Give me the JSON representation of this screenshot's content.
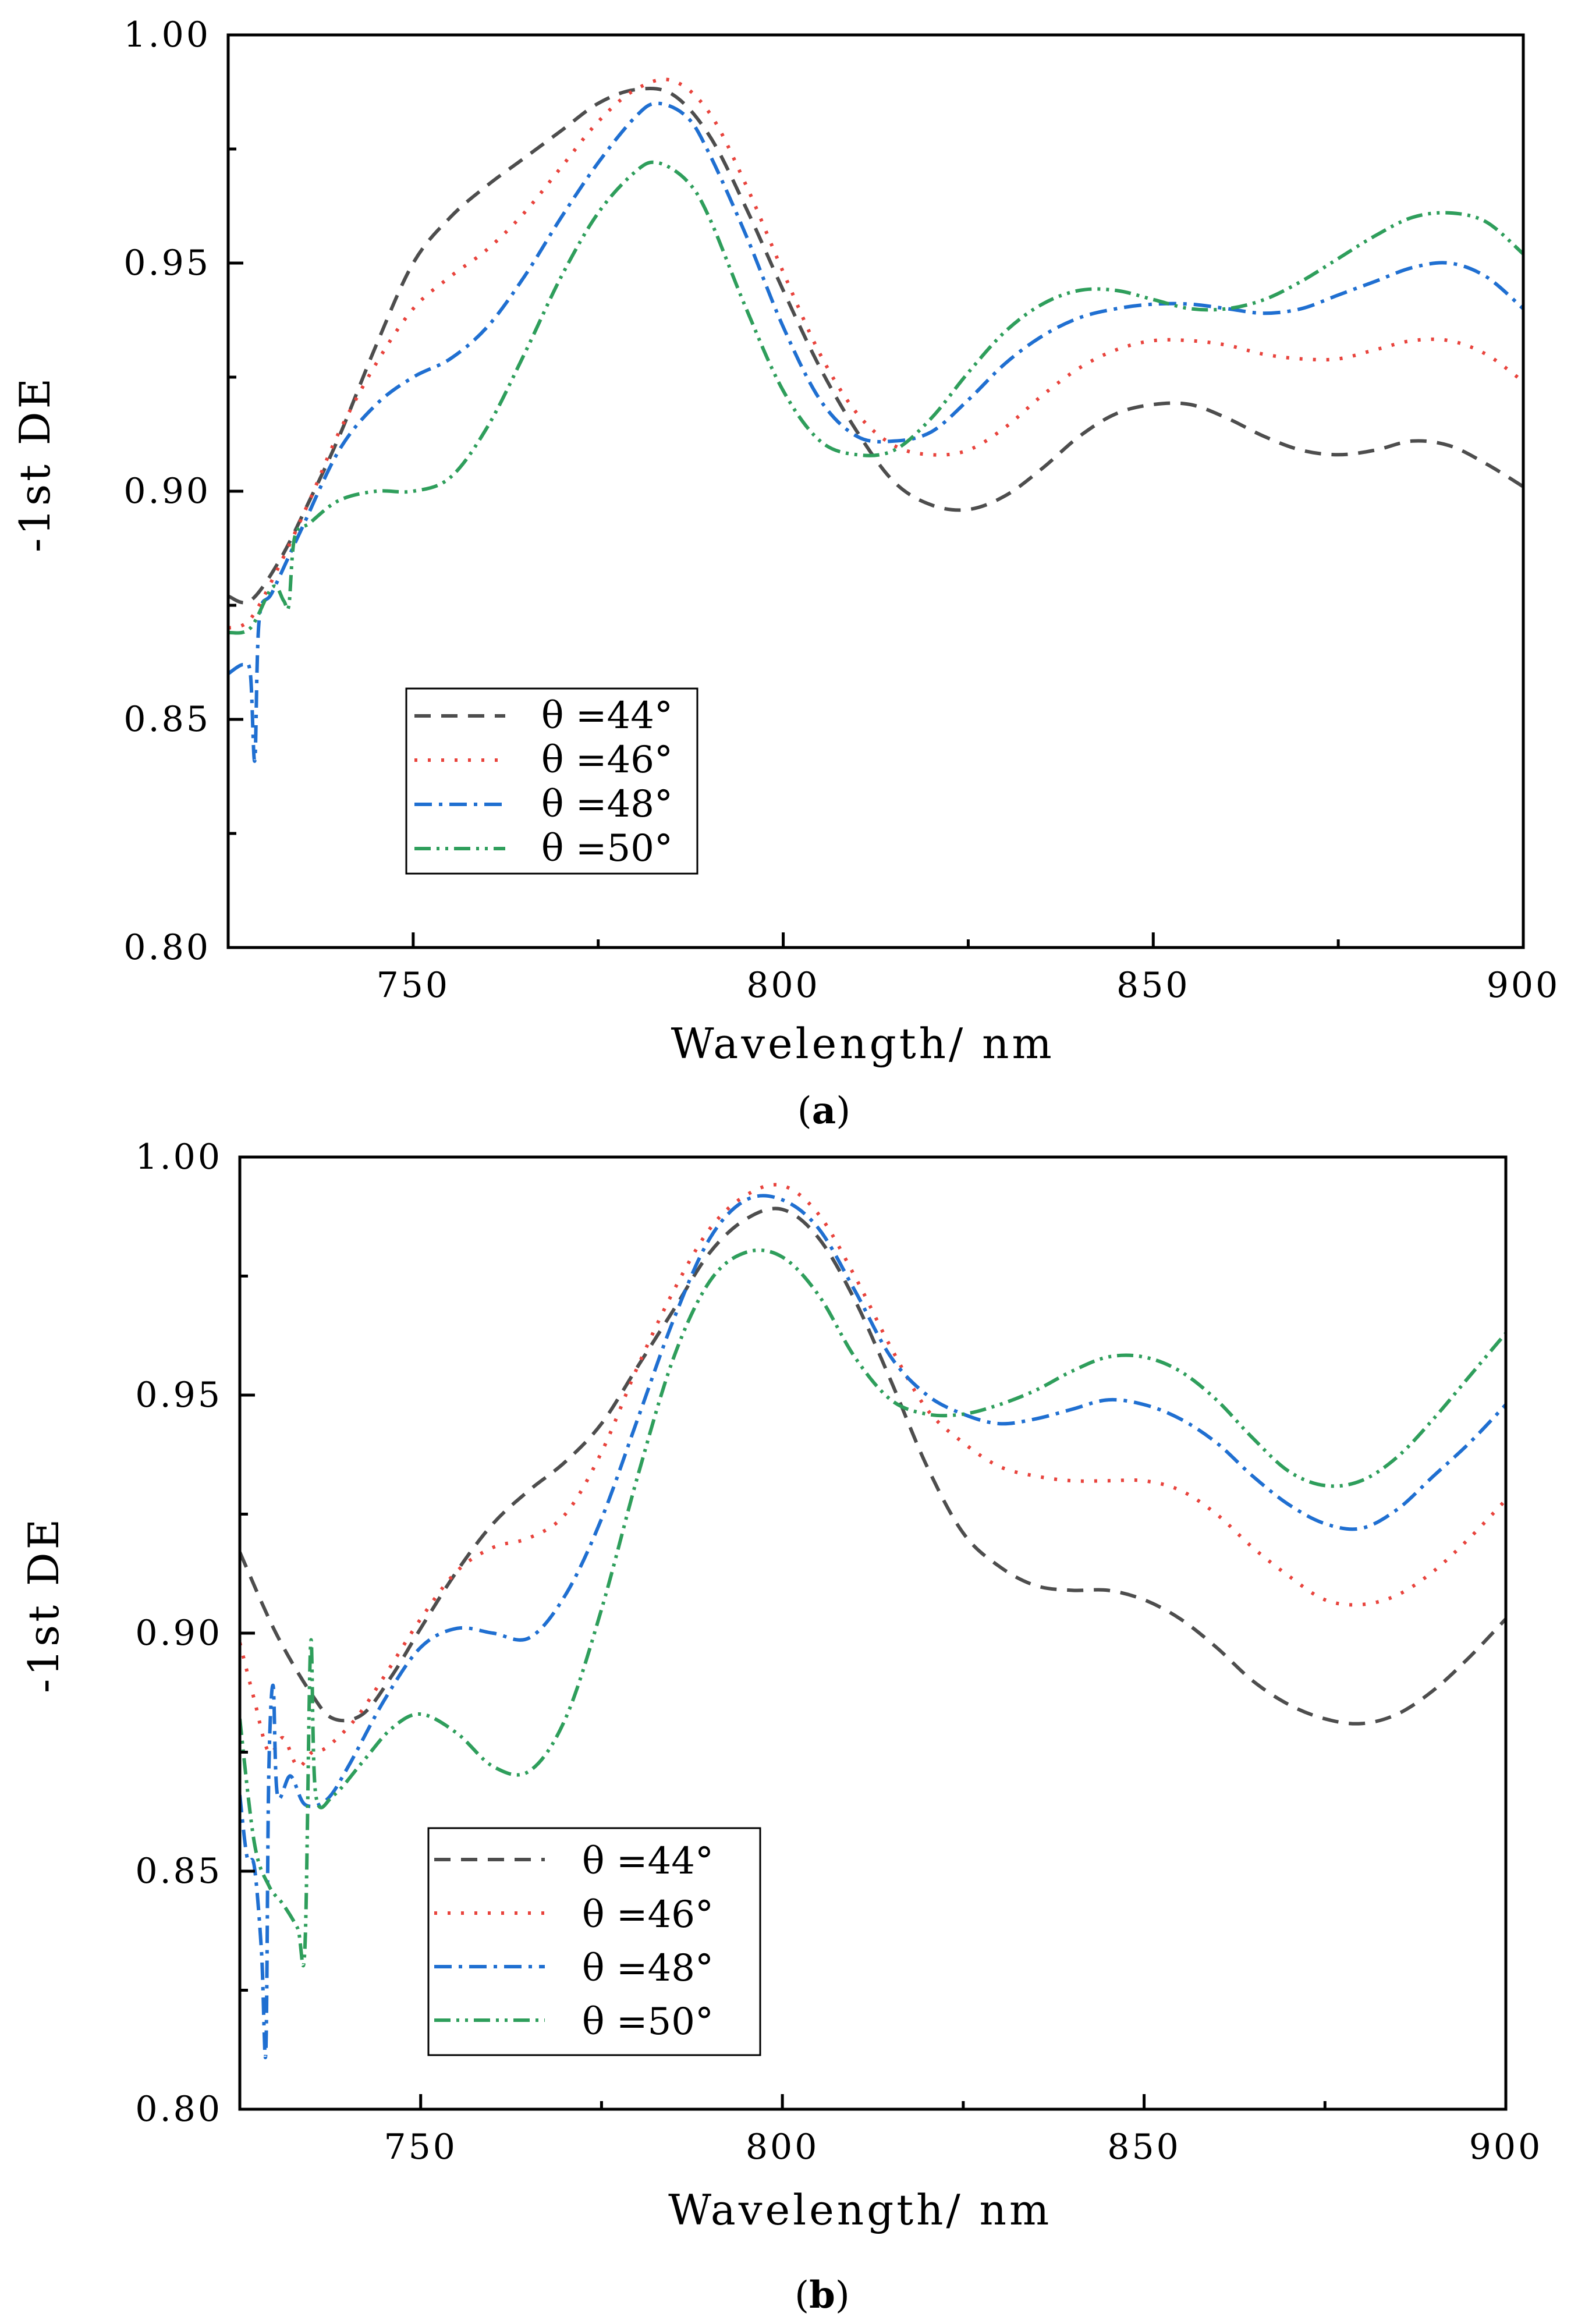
{
  "chart_data": [
    {
      "type": "line",
      "panel": "(a)",
      "panel_letter": "a",
      "xlabel": "Wavelength/ nm",
      "ylabel": "-1st DE",
      "xlim": [
        725,
        900
      ],
      "ylim": [
        0.8,
        1.0
      ],
      "xticks": [
        750,
        800,
        850,
        900
      ],
      "xtick_labels": [
        "750",
        "800",
        "850",
        "900"
      ],
      "yticks": [
        0.8,
        0.85,
        0.9,
        0.95,
        1.0
      ],
      "ytick_labels": [
        "0.80",
        "0.85",
        "0.90",
        "0.95",
        "1.00"
      ],
      "legend": "lower-left",
      "series": [
        {
          "name": "θ =44°",
          "color": "#4d4d4d",
          "dash": "28,18",
          "x": [
            725,
            728,
            732,
            736,
            740,
            745,
            750,
            755,
            760,
            765,
            770,
            775,
            780,
            785,
            790,
            795,
            800,
            805,
            810,
            815,
            820,
            825,
            830,
            835,
            840,
            845,
            850,
            855,
            860,
            865,
            870,
            875,
            880,
            885,
            890,
            895,
            900
          ],
          "y": [
            0.877,
            0.876,
            0.885,
            0.898,
            0.912,
            0.932,
            0.95,
            0.96,
            0.967,
            0.973,
            0.979,
            0.985,
            0.988,
            0.987,
            0.978,
            0.962,
            0.944,
            0.927,
            0.913,
            0.902,
            0.897,
            0.896,
            0.899,
            0.905,
            0.912,
            0.917,
            0.919,
            0.919,
            0.916,
            0.912,
            0.909,
            0.908,
            0.909,
            0.911,
            0.91,
            0.906,
            0.901
          ]
        },
        {
          "name": "θ =46°",
          "color": "#e8433c",
          "dash": "5,18",
          "x": [
            725,
            728,
            732,
            736,
            740,
            745,
            750,
            755,
            760,
            765,
            770,
            775,
            780,
            785,
            790,
            795,
            800,
            805,
            810,
            815,
            820,
            825,
            830,
            835,
            840,
            845,
            850,
            855,
            860,
            865,
            870,
            875,
            880,
            885,
            890,
            895,
            900
          ],
          "y": [
            0.87,
            0.872,
            0.884,
            0.898,
            0.913,
            0.928,
            0.94,
            0.947,
            0.953,
            0.961,
            0.971,
            0.981,
            0.988,
            0.99,
            0.983,
            0.967,
            0.948,
            0.93,
            0.917,
            0.91,
            0.908,
            0.909,
            0.914,
            0.921,
            0.927,
            0.931,
            0.933,
            0.933,
            0.932,
            0.93,
            0.929,
            0.929,
            0.931,
            0.933,
            0.933,
            0.93,
            0.924
          ]
        },
        {
          "name": "θ =48°",
          "color": "#1f6fd1",
          "dash": "30,12,6,12",
          "x": [
            725,
            727,
            728,
            728.6,
            729.2,
            731,
            735,
            740,
            745,
            750,
            755,
            760,
            765,
            770,
            775,
            780,
            783,
            787,
            790,
            795,
            800,
            805,
            810,
            815,
            820,
            825,
            830,
            835,
            840,
            845,
            850,
            855,
            860,
            865,
            870,
            875,
            880,
            885,
            890,
            895,
            900
          ],
          "y": [
            0.86,
            0.862,
            0.86,
            0.841,
            0.872,
            0.878,
            0.892,
            0.909,
            0.919,
            0.925,
            0.929,
            0.936,
            0.947,
            0.96,
            0.972,
            0.982,
            0.985,
            0.982,
            0.974,
            0.956,
            0.936,
            0.92,
            0.912,
            0.911,
            0.913,
            0.92,
            0.928,
            0.934,
            0.938,
            0.94,
            0.941,
            0.941,
            0.94,
            0.939,
            0.94,
            0.943,
            0.946,
            0.949,
            0.95,
            0.947,
            0.94
          ]
        },
        {
          "name": "θ =50°",
          "color": "#2e9e5b",
          "dash": "28,10,5,10,5,10",
          "x": [
            725,
            728,
            731,
            732.5,
            733.2,
            734,
            736,
            740,
            745,
            750,
            755,
            760,
            765,
            770,
            775,
            780,
            783,
            787,
            790,
            795,
            800,
            805,
            810,
            815,
            820,
            825,
            830,
            835,
            840,
            845,
            850,
            855,
            860,
            865,
            870,
            875,
            880,
            885,
            890,
            895,
            900
          ],
          "y": [
            0.869,
            0.87,
            0.879,
            0.876,
            0.875,
            0.89,
            0.893,
            0.898,
            0.9,
            0.9,
            0.903,
            0.914,
            0.93,
            0.947,
            0.961,
            0.97,
            0.972,
            0.968,
            0.96,
            0.94,
            0.922,
            0.911,
            0.908,
            0.909,
            0.916,
            0.926,
            0.935,
            0.941,
            0.944,
            0.944,
            0.942,
            0.94,
            0.94,
            0.942,
            0.946,
            0.951,
            0.956,
            0.96,
            0.961,
            0.959,
            0.952
          ]
        }
      ]
    },
    {
      "type": "line",
      "panel": "(b)",
      "panel_letter": "b",
      "xlabel": "Wavelength/ nm",
      "ylabel": "-1st DE",
      "xlim": [
        725,
        900
      ],
      "ylim": [
        0.8,
        1.0
      ],
      "xticks": [
        750,
        800,
        850,
        900
      ],
      "xtick_labels": [
        "750",
        "800",
        "850",
        "900"
      ],
      "yticks": [
        0.8,
        0.85,
        0.9,
        0.95,
        1.0
      ],
      "ytick_labels": [
        "0.80",
        "0.85",
        "0.90",
        "0.95",
        "1.00"
      ],
      "legend": "lower-left",
      "series": [
        {
          "name": "θ =44°",
          "color": "#4d4d4d",
          "dash": "28,18",
          "x": [
            725,
            730,
            735,
            738,
            742,
            746,
            750,
            755,
            760,
            765,
            770,
            775,
            780,
            785,
            790,
            795,
            800,
            805,
            810,
            815,
            820,
            825,
            830,
            835,
            840,
            845,
            850,
            855,
            860,
            865,
            870,
            875,
            880,
            885,
            890,
            895,
            900
          ],
          "y": [
            0.917,
            0.9,
            0.887,
            0.882,
            0.883,
            0.891,
            0.901,
            0.913,
            0.923,
            0.93,
            0.936,
            0.944,
            0.956,
            0.968,
            0.98,
            0.987,
            0.989,
            0.983,
            0.97,
            0.953,
            0.935,
            0.921,
            0.914,
            0.91,
            0.909,
            0.909,
            0.907,
            0.903,
            0.897,
            0.89,
            0.885,
            0.882,
            0.881,
            0.883,
            0.888,
            0.895,
            0.903
          ]
        },
        {
          "name": "θ =46°",
          "color": "#e8433c",
          "dash": "5,18",
          "x": [
            725,
            727,
            729,
            731,
            733,
            735,
            737,
            741,
            745,
            750,
            755,
            760,
            765,
            770,
            775,
            780,
            785,
            790,
            795,
            800,
            805,
            810,
            815,
            820,
            825,
            830,
            835,
            840,
            845,
            850,
            855,
            860,
            865,
            870,
            875,
            880,
            885,
            890,
            895,
            900
          ],
          "y": [
            0.898,
            0.886,
            0.875,
            0.878,
            0.872,
            0.875,
            0.876,
            0.882,
            0.891,
            0.903,
            0.913,
            0.918,
            0.92,
            0.925,
            0.938,
            0.956,
            0.972,
            0.985,
            0.992,
            0.994,
            0.988,
            0.975,
            0.96,
            0.947,
            0.94,
            0.935,
            0.933,
            0.932,
            0.932,
            0.932,
            0.93,
            0.925,
            0.918,
            0.912,
            0.907,
            0.906,
            0.908,
            0.913,
            0.92,
            0.928
          ]
        },
        {
          "name": "θ =48°",
          "color": "#1f6fd1",
          "dash": "30,12,6,12",
          "x": [
            725,
            726,
            727,
            728,
            728.6,
            729,
            729.6,
            730.2,
            732,
            734,
            737,
            740,
            745,
            750,
            755,
            760,
            765,
            770,
            775,
            780,
            785,
            790,
            795,
            800,
            805,
            810,
            815,
            820,
            825,
            830,
            835,
            840,
            845,
            850,
            855,
            860,
            865,
            870,
            875,
            880,
            885,
            890,
            895,
            900
          ],
          "y": [
            0.866,
            0.853,
            0.851,
            0.833,
            0.812,
            0.87,
            0.889,
            0.866,
            0.87,
            0.864,
            0.865,
            0.872,
            0.886,
            0.897,
            0.901,
            0.9,
            0.899,
            0.908,
            0.924,
            0.945,
            0.966,
            0.983,
            0.991,
            0.991,
            0.985,
            0.972,
            0.958,
            0.95,
            0.946,
            0.944,
            0.945,
            0.947,
            0.949,
            0.948,
            0.945,
            0.94,
            0.933,
            0.927,
            0.923,
            0.922,
            0.926,
            0.933,
            0.94,
            0.948
          ]
        },
        {
          "name": "θ =50°",
          "color": "#2e9e5b",
          "dash": "28,10,5,10,5,10",
          "x": [
            725,
            727,
            729,
            731,
            733,
            734,
            734.8,
            735.5,
            738,
            742,
            746,
            750,
            755,
            760,
            765,
            770,
            775,
            780,
            785,
            790,
            795,
            800,
            805,
            810,
            815,
            820,
            825,
            830,
            835,
            840,
            845,
            850,
            855,
            860,
            865,
            870,
            875,
            880,
            885,
            890,
            895,
            900
          ],
          "y": [
            0.882,
            0.856,
            0.847,
            0.843,
            0.838,
            0.834,
            0.898,
            0.866,
            0.866,
            0.873,
            0.88,
            0.883,
            0.879,
            0.872,
            0.871,
            0.882,
            0.905,
            0.933,
            0.958,
            0.974,
            0.98,
            0.979,
            0.971,
            0.958,
            0.949,
            0.946,
            0.946,
            0.948,
            0.951,
            0.955,
            0.958,
            0.958,
            0.955,
            0.949,
            0.941,
            0.934,
            0.931,
            0.932,
            0.937,
            0.945,
            0.954,
            0.963
          ]
        }
      ]
    }
  ]
}
